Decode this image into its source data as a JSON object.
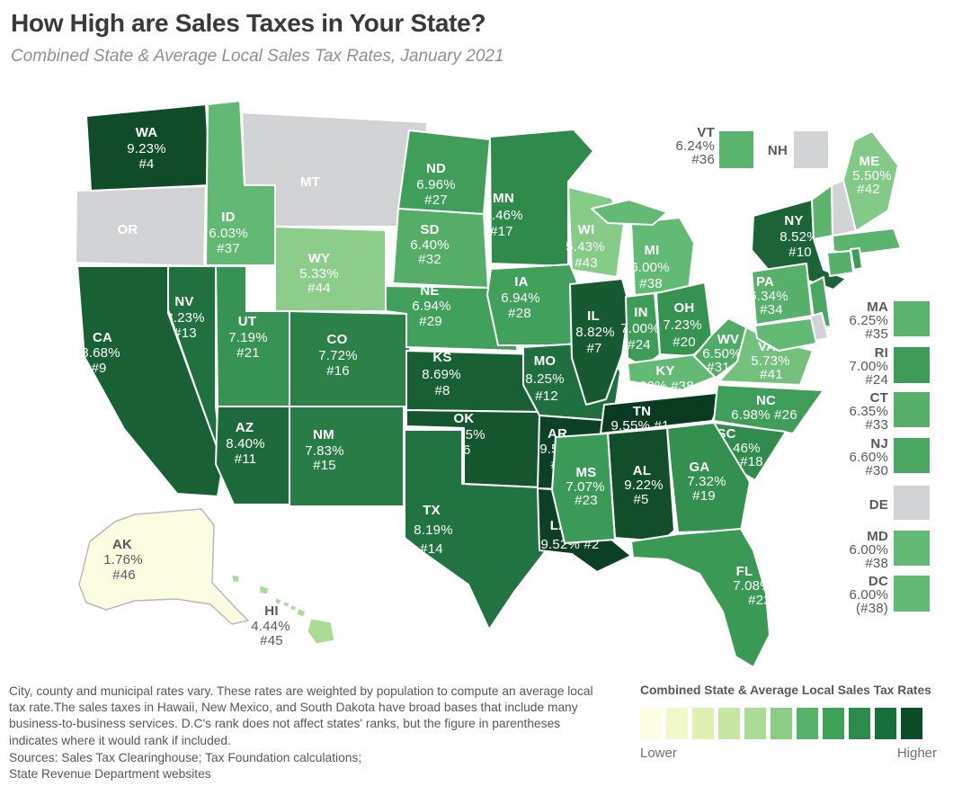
{
  "title": "How High are Sales Taxes in Your State?",
  "subtitle": "Combined State & Average Local Sales Tax Rates, January 2021",
  "notes": "City, county and municipal rates vary. These rates are weighted by population to compute an average local tax rate.The sales taxes in Hawaii, New Mexico, and South Dakota have broad bases that include many business-to-business services. D.C's rank does not affect states' ranks, but the figure in parentheses indicates where it would rank if included.",
  "sources": "Sources: Sales Tax Clearinghouse; Tax Foundation calculations;\nState Revenue Department websites",
  "legend": {
    "title": "Combined State & Average Local Sales Tax Rates",
    "low_label": "Lower",
    "high_label": "Higher",
    "colors": [
      "#fdfde4",
      "#f3f8c8",
      "#e0f0b3",
      "#c8e6a3",
      "#abdb94",
      "#8bcc85",
      "#55b469",
      "#3fa259",
      "#2c8b4b",
      "#16703b",
      "#0a4e28"
    ]
  },
  "no_data_color": "#d2d3d5",
  "chart_data": {
    "type": "choropleth-map",
    "region": "United States",
    "value_label": "Combined state & average local sales tax rate",
    "states": [
      {
        "abbr": "OR",
        "color": "#d2d3d5",
        "no_data": true
      },
      {
        "abbr": "WA",
        "rate": "9.23%",
        "rank": "#4",
        "color": "#114c29"
      },
      {
        "abbr": "ID",
        "rate": "6.03%",
        "rank": "#37",
        "color": "#62b973"
      },
      {
        "abbr": "MT",
        "color": "#d2d3d5",
        "no_data": true
      },
      {
        "abbr": "WY",
        "rate": "5.33%",
        "rank": "#44",
        "color": "#8ccd8c"
      },
      {
        "abbr": "NV",
        "rate": "8.23%",
        "rank": "#13",
        "color": "#217140"
      },
      {
        "abbr": "UT",
        "rate": "7.19%",
        "rank": "#21",
        "color": "#379353"
      },
      {
        "abbr": "CA",
        "rate": "8.68%",
        "rank": "#9",
        "color": "#196035"
      },
      {
        "abbr": "CO",
        "rate": "7.72%",
        "rank": "#16",
        "color": "#2b8148"
      },
      {
        "abbr": "AZ",
        "rate": "8.40%",
        "rank": "#11",
        "color": "#1f6a3c"
      },
      {
        "abbr": "NM",
        "rate": "7.83%",
        "rank": "#15",
        "color": "#287d46"
      },
      {
        "abbr": "ND",
        "rate": "6.96%",
        "rank": "#27",
        "color": "#409e5a"
      },
      {
        "abbr": "SD",
        "rate": "6.40%",
        "rank": "#32",
        "color": "#54ae68"
      },
      {
        "abbr": "NE",
        "rate": "6.94%",
        "rank": "#29",
        "color": "#41a05c"
      },
      {
        "abbr": "KS",
        "rate": "8.69%",
        "rank": "#8",
        "color": "#186033"
      },
      {
        "abbr": "OK",
        "rate": "8.95%",
        "rank": "#6",
        "color": "#15562e"
      },
      {
        "abbr": "TX",
        "rate": "8.19%",
        "rank": "#14",
        "color": "#227342"
      },
      {
        "abbr": "MN",
        "rate": "7.46%",
        "rank": "#17",
        "color": "#2f8a4c"
      },
      {
        "abbr": "IA",
        "rate": "6.94%",
        "rank": "#28",
        "color": "#41a05b"
      },
      {
        "abbr": "MO",
        "rate": "8.25%",
        "rank": "#12",
        "color": "#20703f"
      },
      {
        "abbr": "AR",
        "rate": "9.51%",
        "rank": "#3",
        "color": "#0d4125"
      },
      {
        "abbr": "LA",
        "rate": "9.52%",
        "rank": "#2",
        "color": "#0c3f23"
      },
      {
        "abbr": "WI",
        "rate": "5.43%",
        "rank": "#43",
        "color": "#87cb89"
      },
      {
        "abbr": "IL",
        "rate": "8.82%",
        "rank": "#7",
        "color": "#175a31"
      },
      {
        "abbr": "MI",
        "rate": "6.00%",
        "rank": "#38",
        "color": "#63ba74"
      },
      {
        "abbr": "IN",
        "rate": "7.00%",
        "rank": "#24",
        "color": "#3e9c59"
      },
      {
        "abbr": "OH",
        "rate": "7.23%",
        "rank": "#20",
        "color": "#369251"
      },
      {
        "abbr": "KY",
        "rate": "6.00%",
        "rank": "#38",
        "color": "#63ba74"
      },
      {
        "abbr": "TN",
        "rate": "9.55%",
        "rank": "#1",
        "color": "#0a3b21"
      },
      {
        "abbr": "WV",
        "rate": "6.50%",
        "rank": "#31",
        "color": "#50ab66"
      },
      {
        "abbr": "VA",
        "rate": "5.73%",
        "rank": "#41",
        "color": "#74c17e"
      },
      {
        "abbr": "NC",
        "rate": "6.98%",
        "rank": "#26",
        "color": "#3f9e5a"
      },
      {
        "abbr": "SC",
        "rate": "7.46%",
        "rank": "#18",
        "color": "#308b4d"
      },
      {
        "abbr": "GA",
        "rate": "7.32%",
        "rank": "#19",
        "color": "#33904f"
      },
      {
        "abbr": "AL",
        "rate": "9.22%",
        "rank": "#5",
        "color": "#124e2a"
      },
      {
        "abbr": "MS",
        "rate": "7.07%",
        "rank": "#23",
        "color": "#3b9a57"
      },
      {
        "abbr": "FL",
        "rate": "7.08%",
        "rank": "#22",
        "color": "#3b9956"
      },
      {
        "abbr": "NY",
        "rate": "8.52%",
        "rank": "#10",
        "color": "#1c6338"
      },
      {
        "abbr": "PA",
        "rate": "6.34%",
        "rank": "#34",
        "color": "#57b16b"
      },
      {
        "abbr": "NJ",
        "rate": "6.60%",
        "rank": "#30",
        "color": "#4aa862"
      },
      {
        "abbr": "DE",
        "color": "#d2d3d5",
        "no_data": true
      },
      {
        "abbr": "MD",
        "rate": "6.00%",
        "rank": "#38",
        "color": "#63ba74"
      },
      {
        "abbr": "VT",
        "rate": "6.24%",
        "rank": "#36",
        "color": "#5ab46d"
      },
      {
        "abbr": "NH",
        "color": "#d2d3d5",
        "no_data": true
      },
      {
        "abbr": "ME",
        "rate": "5.50%",
        "rank": "#42",
        "color": "#83c987"
      },
      {
        "abbr": "MA",
        "rate": "6.25%",
        "rank": "#35",
        "color": "#5ab46d"
      },
      {
        "abbr": "RI",
        "rate": "7.00%",
        "rank": "#24",
        "color": "#3e9c58"
      },
      {
        "abbr": "CT",
        "rate": "6.35%",
        "rank": "#33",
        "color": "#56b06a"
      },
      {
        "abbr": "AK",
        "rate": "1.76%",
        "rank": "#46",
        "color": "#fcfce3"
      },
      {
        "abbr": "HI",
        "rate": "4.44%",
        "rank": "#45",
        "color": "#abdc93"
      },
      {
        "abbr": "DC",
        "rate": "6.00%",
        "rank": "(#38)",
        "color": "#63ba74"
      }
    ]
  }
}
